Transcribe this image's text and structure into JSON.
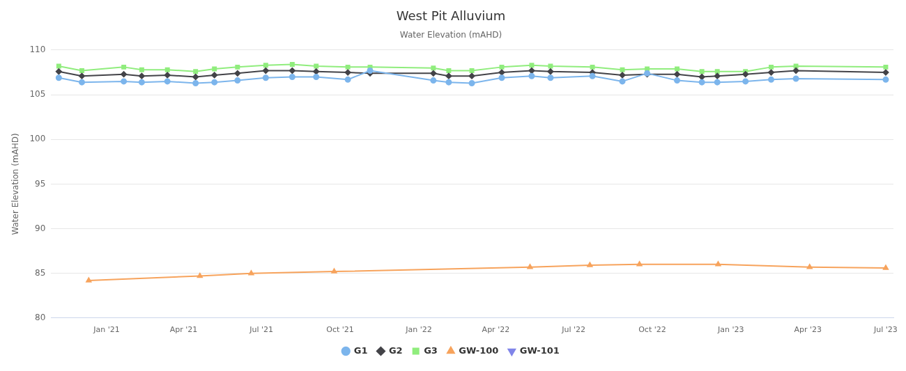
{
  "chart_data": {
    "type": "line",
    "title": "West Pit Alluvium",
    "subtitle": "Water Elevation (mAHD)",
    "ylabel": "Water Elevation (mAHD)",
    "xlim": [
      "2020-10-28",
      "2023-07-10"
    ],
    "xticks": [
      {
        "value": "2021-01-01",
        "label": "Jan '21"
      },
      {
        "value": "2021-04-01",
        "label": "Apr '21"
      },
      {
        "value": "2021-07-01",
        "label": "Jul '21"
      },
      {
        "value": "2021-10-01",
        "label": "Oct '21"
      },
      {
        "value": "2022-01-01",
        "label": "Jan '22"
      },
      {
        "value": "2022-04-01",
        "label": "Apr '22"
      },
      {
        "value": "2022-07-01",
        "label": "Jul '22"
      },
      {
        "value": "2022-10-01",
        "label": "Oct '22"
      },
      {
        "value": "2023-01-01",
        "label": "Jan '23"
      },
      {
        "value": "2023-04-01",
        "label": "Apr '23"
      },
      {
        "value": "2023-07-01",
        "label": "Jul '23"
      }
    ],
    "ylim": [
      80,
      110
    ],
    "yticks": [
      80,
      85,
      90,
      95,
      100,
      105,
      110
    ],
    "grid": "y",
    "legend": "bottom",
    "x": [
      "2020-11-06",
      "2020-12-03",
      "2021-01-21",
      "2021-02-11",
      "2021-03-13",
      "2021-04-15",
      "2021-05-07",
      "2021-06-03",
      "2021-07-06",
      "2021-08-06",
      "2021-09-03",
      "2021-10-10",
      "2021-11-05",
      "2022-01-18",
      "2022-02-05",
      "2022-03-04",
      "2022-04-08",
      "2022-05-13",
      "2022-06-04",
      "2022-07-23",
      "2022-08-27",
      "2022-09-25",
      "2022-10-30",
      "2022-11-28",
      "2022-12-16",
      "2023-01-18",
      "2023-02-17",
      "2023-03-18",
      "2023-07-01"
    ],
    "series": [
      {
        "name": "G1",
        "color": "#7cb5ec",
        "marker": "circle",
        "values": [
          106.9,
          106.4,
          106.5,
          106.4,
          106.5,
          106.3,
          106.4,
          106.6,
          106.9,
          107.0,
          107.0,
          106.7,
          107.7,
          106.6,
          106.4,
          106.3,
          106.9,
          107.1,
          106.9,
          107.1,
          106.5,
          107.4,
          106.6,
          106.4,
          106.4,
          106.5,
          106.7,
          106.8,
          106.7
        ]
      },
      {
        "name": "G2",
        "color": "#434348",
        "marker": "diamond",
        "values": [
          107.6,
          107.1,
          107.3,
          107.1,
          107.2,
          107.0,
          107.2,
          107.4,
          107.7,
          107.7,
          107.6,
          107.5,
          107.4,
          107.4,
          107.1,
          107.1,
          107.5,
          107.7,
          107.6,
          107.5,
          107.2,
          107.3,
          107.3,
          107.0,
          107.1,
          107.3,
          107.5,
          107.7,
          107.5
        ]
      },
      {
        "name": "G3",
        "color": "#90ed7d",
        "marker": "square",
        "values": [
          108.2,
          107.7,
          108.1,
          107.8,
          107.8,
          107.6,
          107.9,
          108.1,
          108.3,
          108.4,
          108.2,
          108.1,
          108.1,
          108.0,
          107.7,
          107.7,
          108.1,
          108.3,
          108.2,
          108.1,
          107.8,
          107.9,
          107.9,
          107.6,
          107.6,
          107.6,
          108.1,
          108.2,
          108.1
        ]
      },
      {
        "name": "GW-100",
        "color": "#f7a35c",
        "marker": "triangle",
        "x": [
          "2020-12-11",
          "2021-04-20",
          "2021-06-19",
          "2021-09-24",
          "2022-05-11",
          "2022-07-20",
          "2022-09-16",
          "2022-12-17",
          "2023-04-03",
          "2023-07-01"
        ],
        "values": [
          84.2,
          84.7,
          85.0,
          85.2,
          85.7,
          85.9,
          86.0,
          86.0,
          85.7,
          85.6
        ]
      },
      {
        "name": "GW-101",
        "color": "#8085e9",
        "marker": "triangle-down",
        "values": [
          null,
          null,
          null,
          null,
          null,
          null,
          null,
          null,
          null,
          null,
          null,
          null,
          null,
          null,
          null,
          null,
          null,
          null,
          null,
          null,
          null,
          null,
          null,
          null,
          null,
          null,
          null,
          null,
          null
        ]
      }
    ]
  }
}
